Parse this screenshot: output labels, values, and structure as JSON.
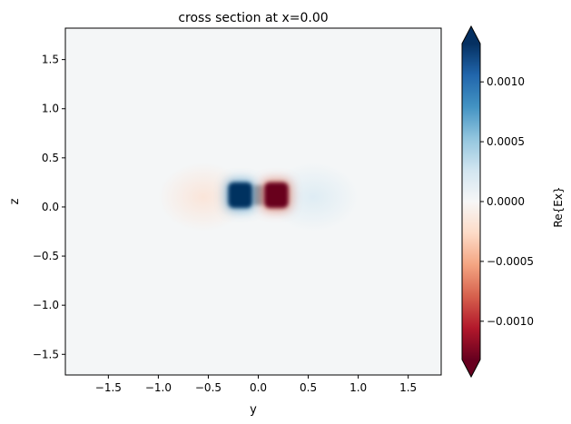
{
  "chart_data": {
    "type": "heatmap",
    "title": "cross section at x=0.00",
    "xlabel": "y",
    "ylabel": "z",
    "xlim": [
      -1.93,
      1.83
    ],
    "ylim": [
      -1.71,
      1.82
    ],
    "xticks": [
      {
        "value": -1.5,
        "label": "−1.5"
      },
      {
        "value": -1.0,
        "label": "−1.0"
      },
      {
        "value": -0.5,
        "label": "−0.5"
      },
      {
        "value": 0.0,
        "label": "0.0"
      },
      {
        "value": 0.5,
        "label": "0.5"
      },
      {
        "value": 1.0,
        "label": "1.0"
      },
      {
        "value": 1.5,
        "label": "1.5"
      }
    ],
    "yticks": [
      {
        "value": 1.5,
        "label": "1.5"
      },
      {
        "value": 1.0,
        "label": "1.0"
      },
      {
        "value": 0.5,
        "label": "0.5"
      },
      {
        "value": 0.0,
        "label": "0.0"
      },
      {
        "value": -0.5,
        "label": "−0.5"
      },
      {
        "value": -1.0,
        "label": "−1.0"
      },
      {
        "value": -1.5,
        "label": "−1.5"
      }
    ],
    "colorbar": {
      "label": "Re{Ex}",
      "colormap": "RdBu",
      "vmin": -0.00132,
      "vmax": 0.00132,
      "extend": "both",
      "ticks": [
        {
          "value": 0.001,
          "label": "0.0010"
        },
        {
          "value": 0.0005,
          "label": "0.0005"
        },
        {
          "value": 0.0,
          "label": "0.0000"
        },
        {
          "value": -0.0005,
          "label": "−0.0005"
        },
        {
          "value": -0.001,
          "label": "−0.0010"
        }
      ]
    },
    "features": [
      {
        "y": -0.18,
        "z": 0.12,
        "width": 0.24,
        "height": 0.26,
        "value": 0.00135
      },
      {
        "y": 0.18,
        "z": 0.12,
        "width": 0.24,
        "height": 0.26,
        "value": -0.00135
      },
      {
        "y": -0.55,
        "z": 0.1,
        "width": 0.9,
        "height": 0.7,
        "value": -0.00012
      },
      {
        "y": 0.55,
        "z": 0.1,
        "width": 0.9,
        "height": 0.7,
        "value": 0.00012
      }
    ]
  }
}
